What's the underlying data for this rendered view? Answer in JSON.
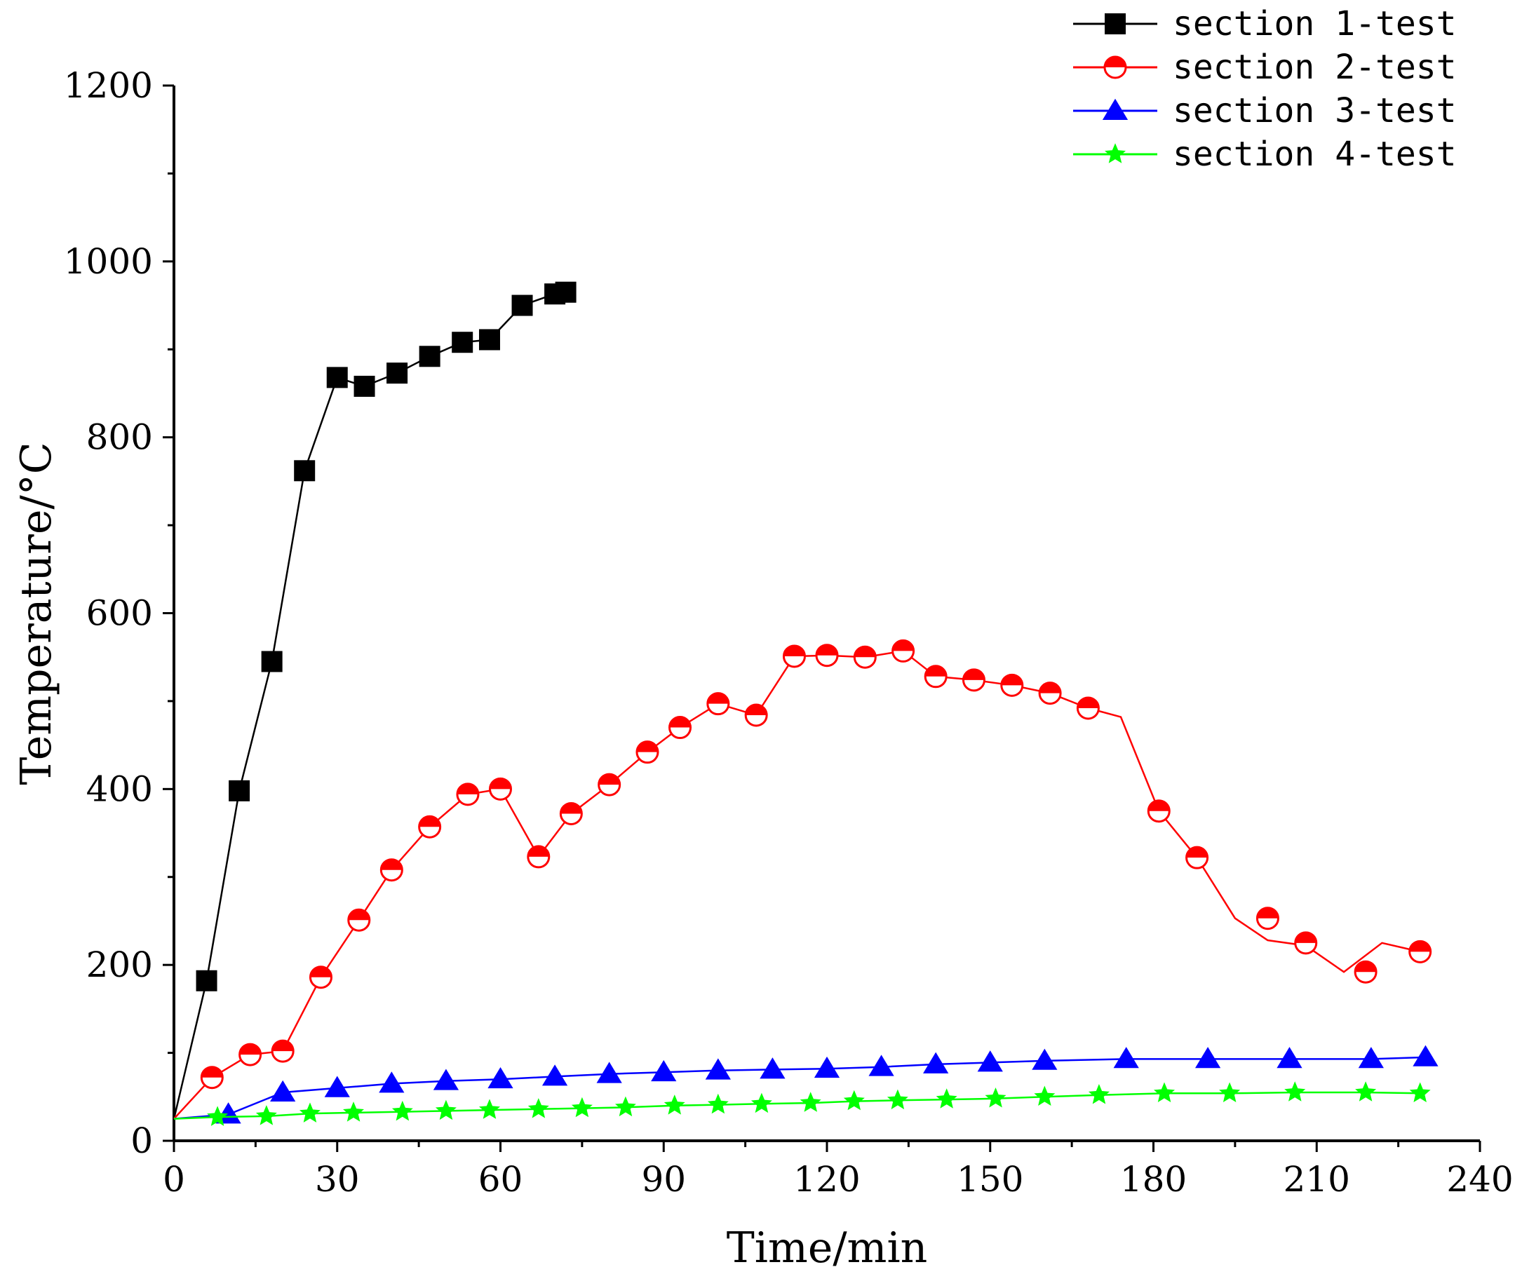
{
  "chart_data": {
    "type": "line",
    "xlabel": "Time/min",
    "ylabel": "Temperature/°C",
    "xlim": [
      0,
      240
    ],
    "ylim": [
      0,
      1200
    ],
    "xticks": [
      0,
      30,
      60,
      90,
      120,
      150,
      180,
      210,
      240
    ],
    "yticks": [
      0,
      200,
      400,
      600,
      800,
      1000,
      1200
    ],
    "x_tick_labels": [
      "0",
      "30",
      "60",
      "90",
      "120",
      "150",
      "180",
      "210",
      "240"
    ],
    "y_tick_labels": [
      "0",
      "200",
      "400",
      "600",
      "800",
      "1000",
      "1200"
    ],
    "grid": false,
    "legend_position": "top-right",
    "series": [
      {
        "name": "section 1-test",
        "color": "#000000",
        "marker": "square",
        "x": [
          0,
          6,
          12,
          18,
          24,
          30,
          35,
          41,
          47,
          53,
          58,
          64,
          70,
          72
        ],
        "y": [
          25,
          182,
          398,
          545,
          762,
          868,
          858,
          873,
          892,
          908,
          911,
          950,
          963,
          965
        ]
      },
      {
        "name": "section 2-test",
        "color": "#ff0000",
        "marker": "circle-half",
        "x": [
          0,
          7,
          14,
          20,
          27,
          34,
          40,
          47,
          54,
          60,
          67,
          73,
          80,
          87,
          93,
          100,
          107,
          114,
          120,
          127,
          134,
          140,
          147,
          154,
          161,
          168,
          174,
          181,
          188,
          195,
          201,
          208,
          215,
          222,
          229
        ],
        "y": [
          25,
          72,
          98,
          102,
          186,
          251,
          308,
          357,
          394,
          400,
          323,
          372,
          405,
          442,
          470,
          497,
          484,
          551,
          552,
          550,
          557,
          528,
          524,
          518,
          509,
          492,
          482,
          375,
          322,
          253,
          228,
          222,
          192,
          225,
          215
        ],
        "marker_x": [
          7,
          14,
          20,
          27,
          34,
          40,
          47,
          54,
          60,
          67,
          73,
          80,
          87,
          93,
          100,
          107,
          114,
          120,
          127,
          134,
          140,
          147,
          154,
          161,
          168,
          181,
          188,
          201,
          208,
          219,
          229
        ],
        "marker_y": [
          72,
          98,
          102,
          186,
          251,
          308,
          357,
          394,
          400,
          323,
          372,
          405,
          442,
          470,
          497,
          484,
          551,
          552,
          550,
          557,
          528,
          524,
          518,
          509,
          492,
          375,
          322,
          253,
          225,
          192,
          215
        ]
      },
      {
        "name": "section 3-test",
        "color": "#0000ff",
        "marker": "triangle",
        "x": [
          0,
          10,
          20,
          30,
          40,
          50,
          60,
          70,
          80,
          90,
          100,
          110,
          120,
          130,
          140,
          150,
          160,
          175,
          190,
          205,
          220,
          230
        ],
        "y": [
          25,
          30,
          55,
          60,
          65,
          68,
          70,
          73,
          76,
          78,
          80,
          81,
          82,
          84,
          87,
          89,
          91,
          93,
          93,
          93,
          93,
          95
        ]
      },
      {
        "name": "section 4-test",
        "color": "#00ff00",
        "marker": "star",
        "x": [
          0,
          8,
          17,
          25,
          33,
          42,
          50,
          58,
          67,
          75,
          83,
          92,
          100,
          108,
          117,
          125,
          133,
          142,
          151,
          160,
          170,
          182,
          194,
          206,
          219,
          229
        ],
        "y": [
          25,
          27,
          28,
          31,
          32,
          33,
          34,
          35,
          36,
          37,
          38,
          40,
          41,
          42,
          43,
          45,
          46,
          47,
          48,
          50,
          52,
          54,
          54,
          55,
          55,
          54
        ]
      }
    ]
  }
}
